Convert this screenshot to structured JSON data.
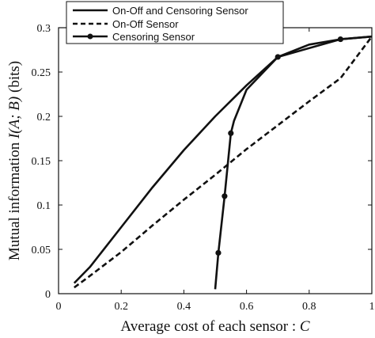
{
  "chart_data": {
    "type": "line",
    "xlabel_text": "Average cost of each sensor : ",
    "xlabel_var": "C",
    "ylabel_text": "Mutual information ",
    "ylabel_func": "I",
    "ylabel_args": "(A; B)",
    "ylabel_unit": " (bits)",
    "xlim": [
      0,
      1
    ],
    "ylim": [
      0,
      0.3
    ],
    "xticks": [
      "0",
      "0.2",
      "0.4",
      "0.6",
      "0.8",
      "1"
    ],
    "yticks": [
      "0",
      "0.05",
      "0.1",
      "0.15",
      "0.2",
      "0.25",
      "0.3"
    ],
    "legend_position": "top-left",
    "grid": false,
    "series": [
      {
        "name": "On-Off and Censoring Sensor",
        "style": "solid",
        "markers": false,
        "x": [
          0.05,
          0.1,
          0.2,
          0.3,
          0.4,
          0.5,
          0.6,
          0.7,
          0.8,
          0.9,
          1.0
        ],
        "y": [
          0.012,
          0.03,
          0.075,
          0.12,
          0.162,
          0.2,
          0.235,
          0.267,
          0.281,
          0.287,
          0.29
        ]
      },
      {
        "name": "On-Off Sensor",
        "style": "dashed",
        "markers": false,
        "x": [
          0.05,
          0.1,
          0.2,
          0.3,
          0.4,
          0.5,
          0.6,
          0.7,
          0.8,
          0.9,
          1.0
        ],
        "y": [
          0.007,
          0.02,
          0.047,
          0.077,
          0.106,
          0.134,
          0.163,
          0.19,
          0.217,
          0.243,
          0.29
        ]
      },
      {
        "name": "Censoring Sensor",
        "style": "solid",
        "markers": true,
        "x": [
          0.5,
          0.51,
          0.53,
          0.55,
          0.56,
          0.6,
          0.7,
          0.9,
          1.0
        ],
        "y": [
          0.005,
          0.046,
          0.11,
          0.181,
          0.195,
          0.23,
          0.267,
          0.287,
          0.29
        ],
        "marker_x": [
          0.51,
          0.53,
          0.55,
          0.7,
          0.9
        ],
        "marker_y": [
          0.046,
          0.11,
          0.181,
          0.267,
          0.287
        ]
      }
    ]
  }
}
